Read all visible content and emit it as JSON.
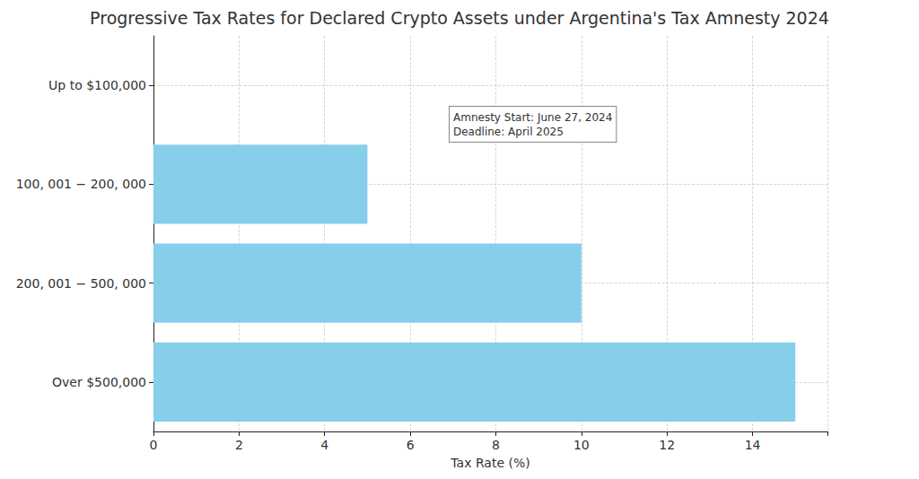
{
  "chart_data": {
    "type": "bar",
    "orientation": "horizontal",
    "title": "Progressive Tax Rates for Declared Crypto Assets under Argentina's Tax Amnesty 2024",
    "xlabel": "Tax Rate (%)",
    "categories": [
      "Up to $100,000",
      "100, 001 − 200, 000",
      "200, 001 − 500, 000",
      "Over $500,000"
    ],
    "values": [
      0,
      5,
      10,
      15
    ],
    "color": "#87ceeb",
    "xlim": [
      0,
      15.75
    ],
    "xticks": [
      0,
      2,
      4,
      6,
      8,
      10,
      12,
      14
    ],
    "grid": true,
    "annotations": [
      "Amnesty Start: June 27, 2024",
      "Deadline: April 2025"
    ]
  }
}
